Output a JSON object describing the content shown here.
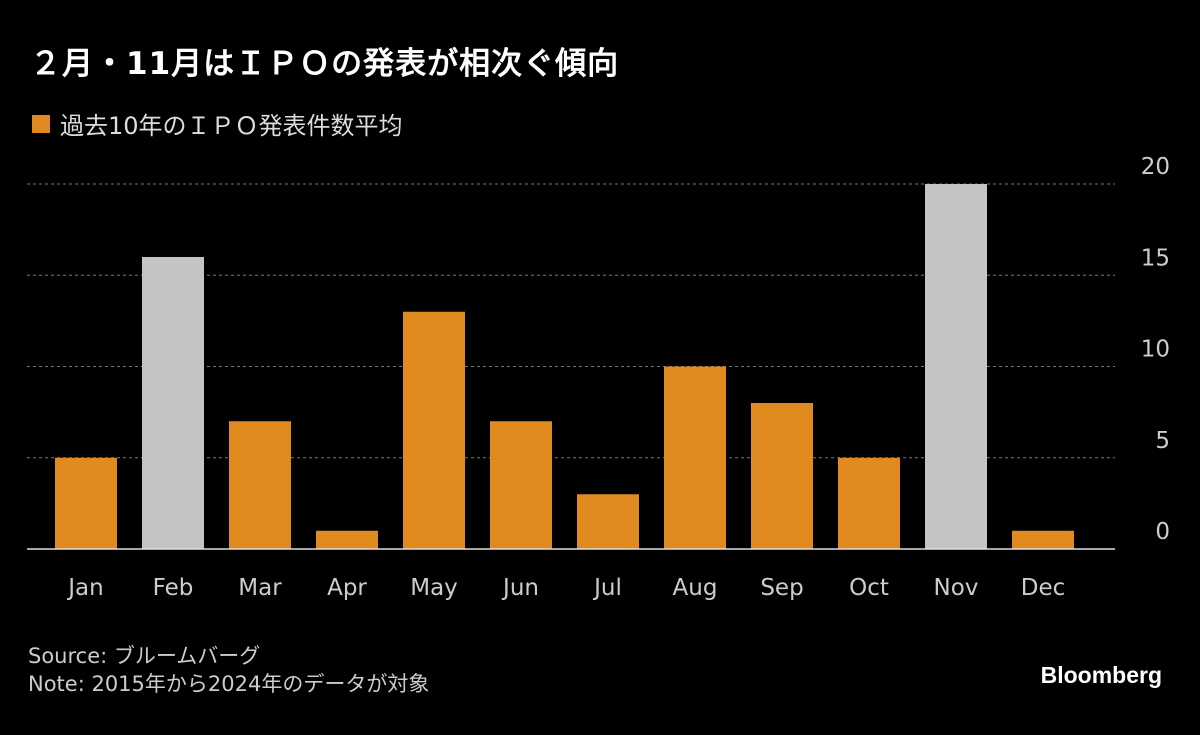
{
  "chart_data": {
    "type": "bar",
    "title": "２月・11月はＩＰＯの発表が相次ぐ傾向",
    "legend": [
      {
        "name": "過去10年のＩＰＯ発表件数平均",
        "color": "#e08a20"
      }
    ],
    "categories": [
      "Jan",
      "Feb",
      "Mar",
      "Apr",
      "May",
      "Jun",
      "Jul",
      "Aug",
      "Sep",
      "Oct",
      "Nov",
      "Dec"
    ],
    "values": [
      5,
      16,
      7,
      1,
      13,
      7,
      3,
      10,
      8,
      5,
      20,
      1
    ],
    "highlighted": [
      "Feb",
      "Nov"
    ],
    "colors": {
      "bar": "#e08a20",
      "highlight": "#c4c4c4"
    },
    "ylim": [
      0,
      20
    ],
    "yticks": [
      0,
      5,
      10,
      15,
      20
    ],
    "y_axis_side": "right",
    "grid": true,
    "legend_placement": "top-left"
  },
  "footer": {
    "source": "Source: ブルームバーグ",
    "note": "Note: 2015年から2024年のデータが対象",
    "logo": "Bloomberg"
  }
}
